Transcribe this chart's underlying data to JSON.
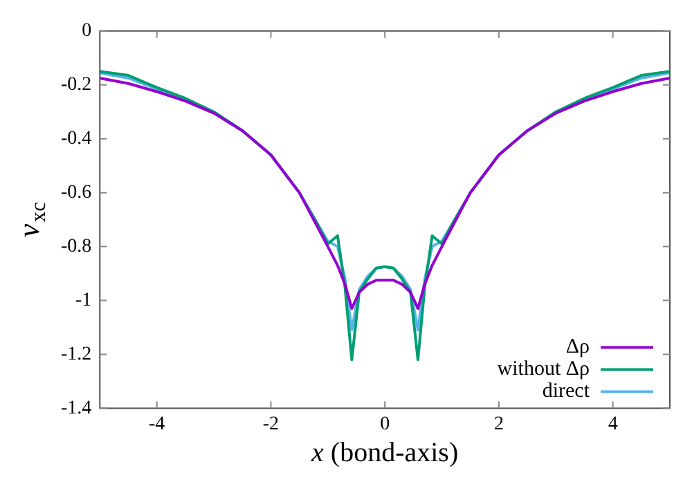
{
  "chart_data": {
    "type": "line",
    "xlabel": "x (bond-axis)",
    "ylabel": "v$_{xc}$",
    "xlim": [
      -5,
      5
    ],
    "xticks": [
      -4,
      -2,
      0,
      2,
      4
    ],
    "ylim": [
      -1.4,
      0
    ],
    "yticks": [
      -1.4,
      -1.2,
      -1,
      -0.8,
      -0.6,
      -0.4,
      -0.2,
      0
    ],
    "grid": false,
    "legend": "bottom right",
    "marker": "none",
    "line_style": "solid",
    "x": [
      -5,
      -4.5,
      -4,
      -3.5,
      -3,
      -2.5,
      -2,
      -1.5,
      -1.2,
      -1,
      -0.83,
      -0.7,
      -0.58,
      -0.45,
      -0.3,
      -0.15,
      0,
      0.15,
      0.3,
      0.45,
      0.58,
      0.7,
      0.83,
      1,
      1.2,
      1.5,
      2,
      2.5,
      3,
      3.5,
      4,
      4.5,
      5
    ],
    "series": [
      {
        "name": "Δρ",
        "color": "#9400d3",
        "values": [
          -0.175,
          -0.195,
          -0.225,
          -0.26,
          -0.305,
          -0.37,
          -0.46,
          -0.6,
          -0.72,
          -0.8,
          -0.87,
          -0.94,
          -1.03,
          -0.97,
          -0.94,
          -0.925,
          -0.925,
          -0.925,
          -0.94,
          -0.97,
          -1.03,
          -0.94,
          -0.87,
          -0.8,
          -0.72,
          -0.6,
          -0.46,
          -0.37,
          -0.305,
          -0.26,
          -0.225,
          -0.195,
          -0.175
        ]
      },
      {
        "name": "without Δρ",
        "color": "#009e73",
        "values": [
          -0.15,
          -0.165,
          -0.21,
          -0.25,
          -0.3,
          -0.37,
          -0.46,
          -0.6,
          -0.71,
          -0.79,
          -0.76,
          -0.95,
          -1.22,
          -0.97,
          -0.92,
          -0.88,
          -0.875,
          -0.88,
          -0.92,
          -0.97,
          -1.22,
          -0.95,
          -0.76,
          -0.79,
          -0.71,
          -0.6,
          -0.46,
          -0.37,
          -0.3,
          -0.25,
          -0.21,
          -0.165,
          -0.15
        ]
      },
      {
        "name": "direct",
        "color": "#56b4e9",
        "values": [
          -0.155,
          -0.175,
          -0.215,
          -0.255,
          -0.305,
          -0.37,
          -0.46,
          -0.6,
          -0.71,
          -0.78,
          -0.8,
          -0.92,
          -1.11,
          -0.96,
          -0.91,
          -0.88,
          -0.875,
          -0.88,
          -0.91,
          -0.96,
          -1.11,
          -0.92,
          -0.8,
          -0.78,
          -0.71,
          -0.6,
          -0.46,
          -0.37,
          -0.305,
          -0.255,
          -0.215,
          -0.175,
          -0.155
        ]
      }
    ]
  }
}
